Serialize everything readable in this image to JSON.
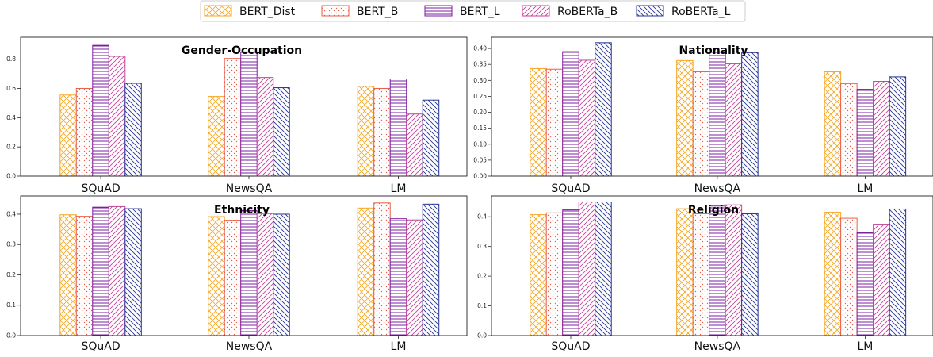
{
  "legend": {
    "items": [
      {
        "label": "BERT_Dist",
        "color": "#f5a623",
        "hatch": "crosshatch"
      },
      {
        "label": "BERT_B",
        "color": "#e8604c",
        "hatch": "dots"
      },
      {
        "label": "BERT_L",
        "color": "#7b1fa2",
        "hatch": "horizontal"
      },
      {
        "label": "RoBERTa_B",
        "color": "#c2449a",
        "hatch": "diagonal"
      },
      {
        "label": "RoBERTa_L",
        "color": "#283593",
        "hatch": "backdiagonal"
      }
    ]
  },
  "chart_data": [
    {
      "type": "bar",
      "title": "Gender-Occupation",
      "categories": [
        "SQuAD",
        "NewsQA",
        "LM"
      ],
      "ylim": [
        0,
        0.95
      ],
      "yticks": [
        "0.0",
        "0.2",
        "0.4",
        "0.6",
        "0.8"
      ],
      "grid": false,
      "legend_placement": "top-center",
      "series": [
        {
          "name": "BERT_Dist",
          "values": [
            0.555,
            0.545,
            0.615
          ]
        },
        {
          "name": "BERT_B",
          "values": [
            0.6,
            0.805,
            0.6
          ]
        },
        {
          "name": "BERT_L",
          "values": [
            0.895,
            0.85,
            0.665
          ]
        },
        {
          "name": "RoBERTa_B",
          "values": [
            0.82,
            0.675,
            0.425
          ]
        },
        {
          "name": "RoBERTa_L",
          "values": [
            0.635,
            0.605,
            0.52
          ]
        }
      ]
    },
    {
      "type": "bar",
      "title": "Nationality",
      "categories": [
        "SQuAD",
        "NewsQA",
        "LM"
      ],
      "ylim": [
        0,
        0.435
      ],
      "yticks": [
        "0.00",
        "0.05",
        "0.10",
        "0.15",
        "0.20",
        "0.25",
        "0.30",
        "0.35",
        "0.40"
      ],
      "grid": false,
      "series": [
        {
          "name": "BERT_Dist",
          "values": [
            0.337,
            0.362,
            0.327
          ]
        },
        {
          "name": "BERT_B",
          "values": [
            0.335,
            0.327,
            0.29
          ]
        },
        {
          "name": "BERT_L",
          "values": [
            0.39,
            0.388,
            0.272
          ]
        },
        {
          "name": "RoBERTa_B",
          "values": [
            0.363,
            0.352,
            0.297
          ]
        },
        {
          "name": "RoBERTa_L",
          "values": [
            0.418,
            0.387,
            0.311
          ]
        }
      ]
    },
    {
      "type": "bar",
      "title": "Ethnicity",
      "categories": [
        "SQuAD",
        "NewsQA",
        "LM"
      ],
      "ylim": [
        0,
        0.46
      ],
      "yticks": [
        "0.0",
        "0.1",
        "0.2",
        "0.3",
        "0.4"
      ],
      "grid": false,
      "series": [
        {
          "name": "BERT_Dist",
          "values": [
            0.398,
            0.392,
            0.42
          ]
        },
        {
          "name": "BERT_B",
          "values": [
            0.393,
            0.38,
            0.437
          ]
        },
        {
          "name": "BERT_L",
          "values": [
            0.423,
            0.412,
            0.385
          ]
        },
        {
          "name": "RoBERTa_B",
          "values": [
            0.425,
            0.402,
            0.381
          ]
        },
        {
          "name": "RoBERTa_L",
          "values": [
            0.418,
            0.4,
            0.433
          ]
        }
      ]
    },
    {
      "type": "bar",
      "title": "Religion",
      "categories": [
        "SQuAD",
        "NewsQA",
        "LM"
      ],
      "ylim": [
        0,
        0.47
      ],
      "yticks": [
        "0.0",
        "0.1",
        "0.2",
        "0.3",
        "0.4"
      ],
      "grid": false,
      "series": [
        {
          "name": "BERT_Dist",
          "values": [
            0.407,
            0.427,
            0.415
          ]
        },
        {
          "name": "BERT_B",
          "values": [
            0.413,
            0.41,
            0.395
          ]
        },
        {
          "name": "BERT_L",
          "values": [
            0.423,
            0.436,
            0.347
          ]
        },
        {
          "name": "RoBERTa_B",
          "values": [
            0.45,
            0.44,
            0.375
          ]
        },
        {
          "name": "RoBERTa_L",
          "values": [
            0.45,
            0.41,
            0.426
          ]
        }
      ]
    }
  ]
}
